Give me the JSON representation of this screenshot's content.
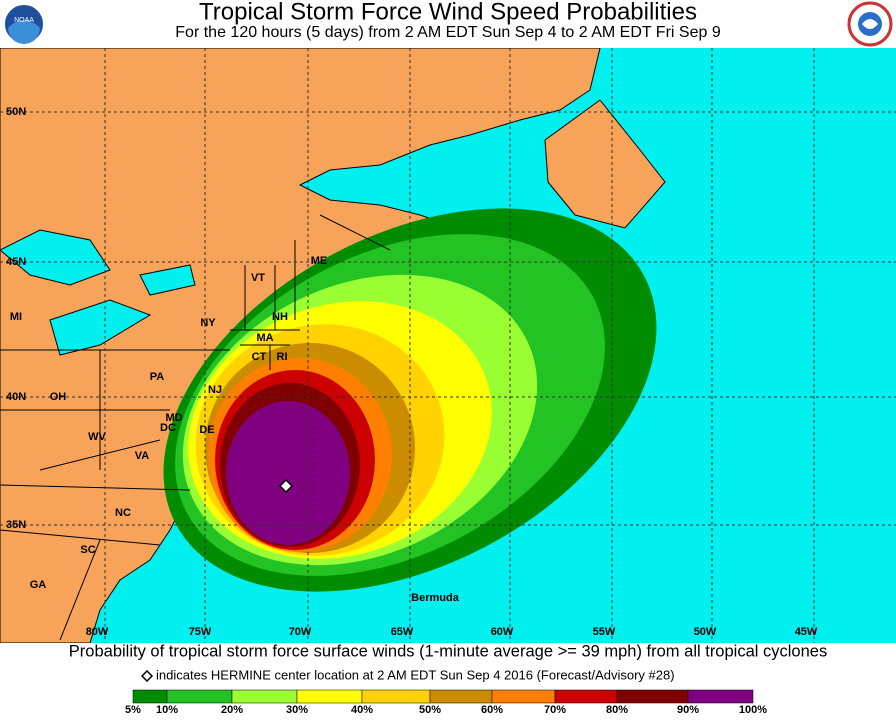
{
  "header": {
    "title": "Tropical Storm Force Wind Speed Probabilities",
    "subtitle": "For the 120 hours (5 days) from 2 AM EDT Sun Sep 4 to 2 AM EDT Fri Sep 9",
    "logo_left": "NOAA"
  },
  "map": {
    "lat_labels": [
      "50N",
      "45N",
      "40N",
      "35N"
    ],
    "lon_labels": [
      "80W",
      "75W",
      "70W",
      "65W",
      "60W",
      "55W",
      "50W",
      "45W"
    ],
    "places": [
      "ME",
      "VT",
      "NH",
      "NY",
      "MA",
      "CT",
      "RI",
      "PA",
      "NJ",
      "OH",
      "MI",
      "MD",
      "DE",
      "DC",
      "WV",
      "VA",
      "NC",
      "SC",
      "GA",
      "Bermuda"
    ]
  },
  "footer": {
    "caption": "Probability of tropical storm force surface winds (1-minute average >= 39 mph) from all tropical cyclones",
    "note": "indicates  HERMINE center location at 2 AM EDT Sun Sep 4 2016 (Forecast/Advisory #28)"
  },
  "legend": {
    "labels": [
      "5%",
      "10%",
      "20%",
      "30%",
      "40%",
      "50%",
      "60%",
      "70%",
      "80%",
      "90%",
      "100%"
    ],
    "colors": [
      "#008c00",
      "#22c322",
      "#99ff33",
      "#ffff00",
      "#ffd200",
      "#cc8c00",
      "#ff7f00",
      "#cc0000",
      "#800000",
      "#800080"
    ]
  }
}
